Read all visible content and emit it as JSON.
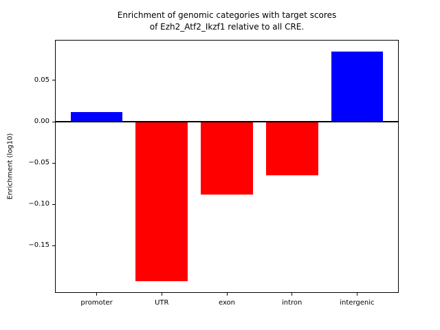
{
  "chart_data": {
    "type": "bar",
    "title": "Enrichment of genomic categories with target scores\nof Ezh2_Atf2_Ikzf1 relative to all CRE.",
    "title_line1": "Enrichment of genomic categories with target scores",
    "title_line2": "of Ezh2_Atf2_Ikzf1 relative to all CRE.",
    "xlabel": "",
    "ylabel": "Enrichment (log10)",
    "categories": [
      "promoter",
      "UTR",
      "exon",
      "intron",
      "intergenic"
    ],
    "values": [
      0.012,
      -0.193,
      -0.088,
      -0.065,
      0.085
    ],
    "colors": [
      "#0000ff",
      "#ff0000",
      "#ff0000",
      "#ff0000",
      "#0000ff"
    ],
    "positive_color": "#0000ff",
    "negative_color": "#ff0000",
    "bar_width": 0.8,
    "xlim": [
      -0.64,
      4.64
    ],
    "ylim": [
      -0.207,
      0.099
    ],
    "yticks": [
      0.05,
      0,
      -0.05,
      -0.1,
      -0.15
    ],
    "ytick_labels": [
      "0.05",
      "0.00",
      "−0.05",
      "−0.10",
      "−0.15"
    ],
    "zero_line": true,
    "grid": false,
    "legend": null,
    "axis_color": "#000000",
    "background_color": "#ffffff"
  }
}
